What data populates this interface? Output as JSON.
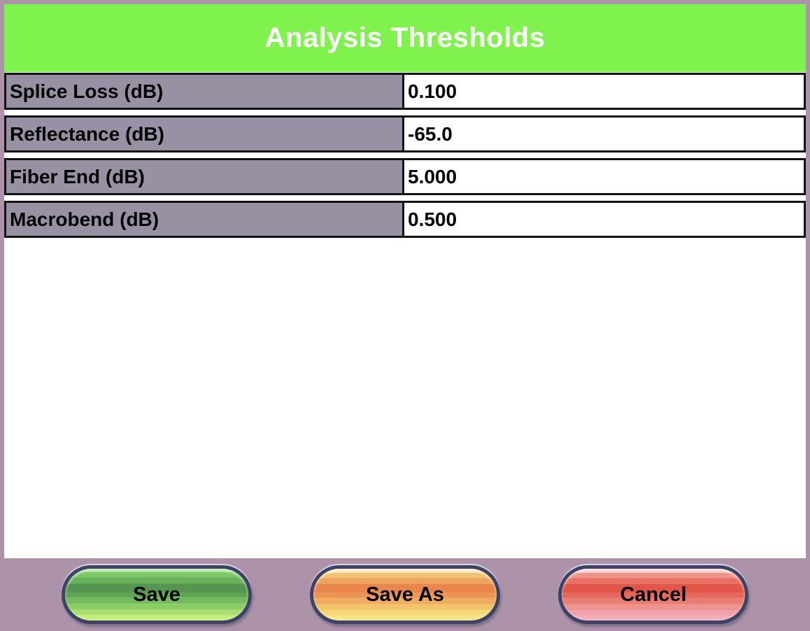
{
  "header": {
    "title": "Analysis Thresholds"
  },
  "fields": [
    {
      "label": "Splice Loss (dB)",
      "value": "0.100"
    },
    {
      "label": "Reflectance (dB)",
      "value": "-65.0"
    },
    {
      "label": "Fiber End (dB)",
      "value": "5.000"
    },
    {
      "label": "Macrobend (dB)",
      "value": "0.500"
    }
  ],
  "buttons": [
    {
      "label": "Save",
      "color": "#6CB75C"
    },
    {
      "label": "Save As",
      "color": "#EC9655"
    },
    {
      "label": "Cancel",
      "color": "#E6675C"
    }
  ],
  "colors": {
    "header_background": "#80F24D",
    "header_text": "#FFFFFF",
    "window_border": "#AC93A9",
    "label_background": "#9791A3",
    "field_background": "#FFFFFF",
    "cell_border": "#121212",
    "button_outline": "#3E4264"
  }
}
